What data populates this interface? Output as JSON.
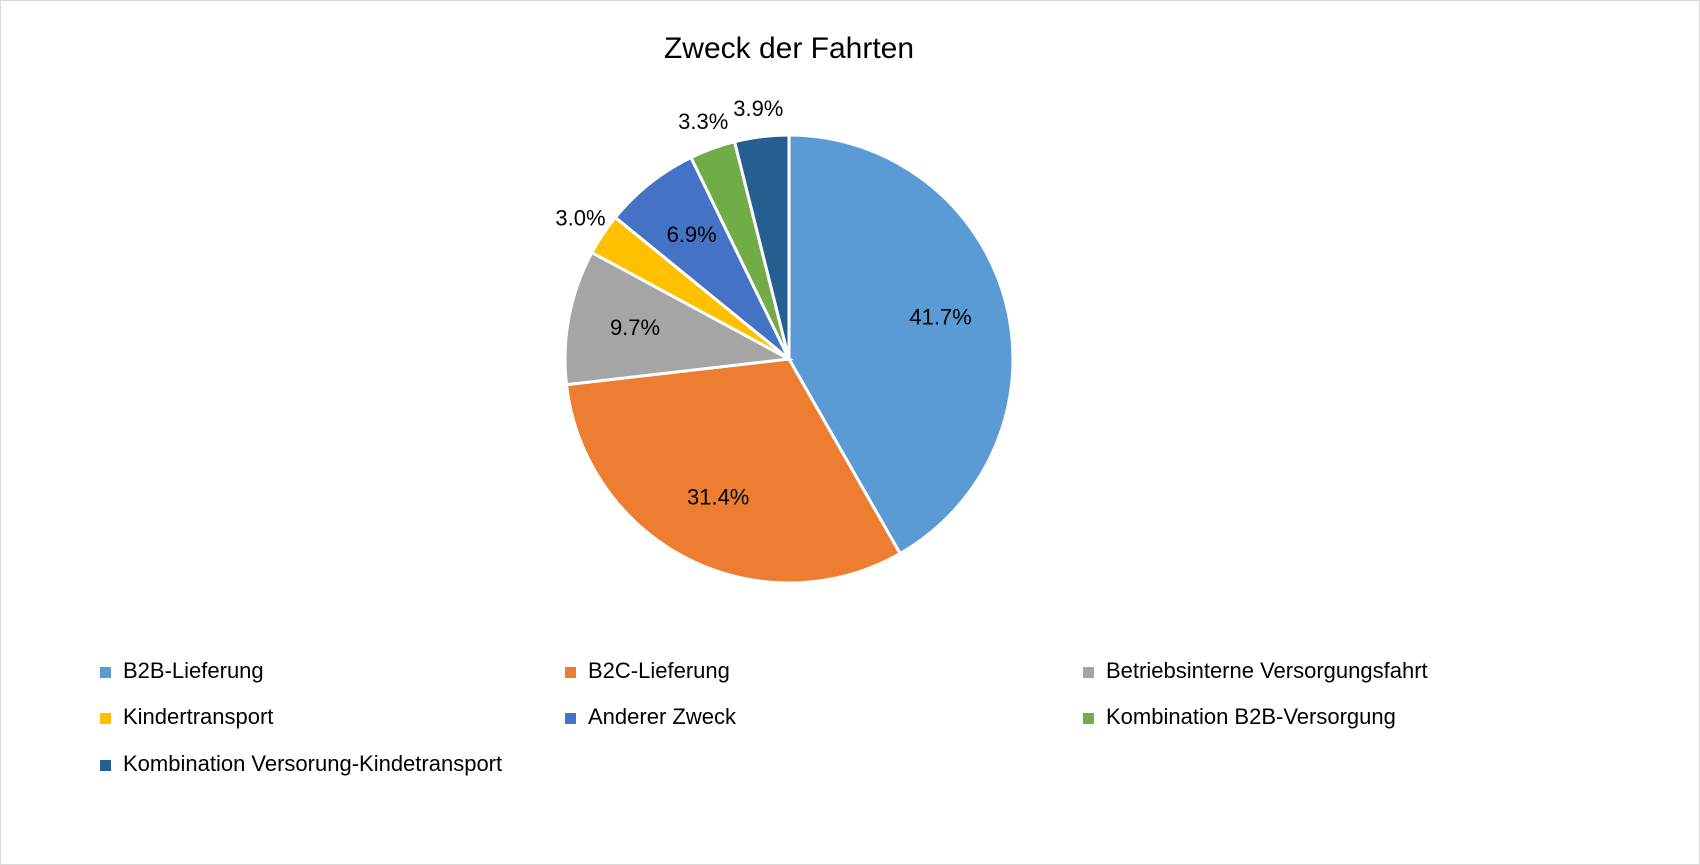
{
  "chart_data": {
    "type": "pie",
    "title": "Zweck der Fahrten",
    "categories": [
      "B2B-Lieferung",
      "B2C-Lieferung",
      "Betriebsinterne Versorgungsfahrt",
      "Kindertransport",
      "Anderer Zweck",
      "Kombination B2B-Versorgung",
      "Kombination Versorung-Kindetransport"
    ],
    "values": [
      41.7,
      31.4,
      9.7,
      3.0,
      6.9,
      3.3,
      3.9
    ],
    "value_labels": [
      "41.7%",
      "31.4%",
      "9.7%",
      "3.0%",
      "6.9%",
      "3.3%",
      "3.9%"
    ],
    "colors": [
      "#5b9bd5",
      "#ed7d31",
      "#a5a5a5",
      "#ffc000",
      "#4472c4",
      "#70ad47",
      "#255e91"
    ],
    "legend": "bottom"
  }
}
